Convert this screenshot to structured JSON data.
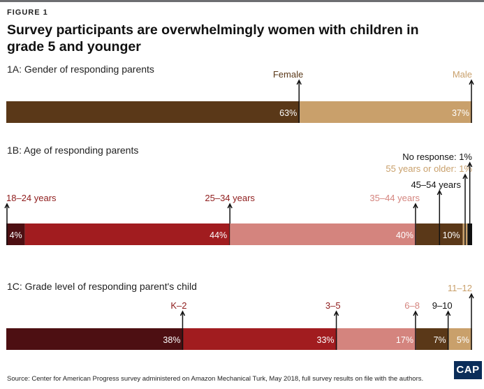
{
  "figure_label": "FIGURE 1",
  "title": "Survey participants are overwhelmingly women with children in grade 5 and younger",
  "source": "Source: Center for American Progress survey administered on Amazon Mechanical Turk, May 2018, full survey results on file with the authors.",
  "logo": "CAP",
  "colors": {
    "dark_brown": "#5a3818",
    "tan": "#c9a06b",
    "black": "#111111",
    "dark_maroon": "#4d0f12",
    "red": "#a11c1f",
    "pink": "#d4847e",
    "dark_red_text": "#8e1b1b"
  },
  "chart_data": [
    {
      "type": "bar",
      "orientation": "horizontal-stacked",
      "title": "1A: Gender of responding parents",
      "segments": [
        {
          "label": "Female",
          "value": 63,
          "value_label": "63%",
          "color": "#5a3818",
          "label_color": "#5a3818"
        },
        {
          "label": "Male",
          "value": 37,
          "value_label": "37%",
          "color": "#c9a06b",
          "label_color": "#c9a06b"
        }
      ]
    },
    {
      "type": "bar",
      "orientation": "horizontal-stacked",
      "title": "1B: Age of responding parents",
      "segments": [
        {
          "label": "18–24 years",
          "value": 4,
          "value_label": "4%",
          "color": "#4d0f12",
          "label_color": "#8e1b1b"
        },
        {
          "label": "25–34 years",
          "value": 44,
          "value_label": "44%",
          "color": "#a11c1f",
          "label_color": "#8e1b1b"
        },
        {
          "label": "35–44 years",
          "value": 40,
          "value_label": "40%",
          "color": "#d4847e",
          "label_color": "#d4847e"
        },
        {
          "label": "45–54 years",
          "value": 10,
          "value_label": "10%",
          "color": "#5a3818",
          "label_color": "#111111"
        },
        {
          "label": "55 years or older: 1%",
          "value": 1,
          "value_label": "",
          "color": "#c9a06b",
          "label_color": "#c9a06b"
        },
        {
          "label": "No response: 1%",
          "value": 1,
          "value_label": "",
          "color": "#111111",
          "label_color": "#111111"
        }
      ]
    },
    {
      "type": "bar",
      "orientation": "horizontal-stacked",
      "title": "1C: Grade level of responding parent's child",
      "segments": [
        {
          "label": "K–2",
          "value": 38,
          "value_label": "38%",
          "color": "#4d0f12",
          "label_color": "#8e1b1b"
        },
        {
          "label": "3–5",
          "value": 33,
          "value_label": "33%",
          "color": "#a11c1f",
          "label_color": "#8e1b1b"
        },
        {
          "label": "6–8",
          "value": 17,
          "value_label": "17%",
          "color": "#d4847e",
          "label_color": "#d4847e"
        },
        {
          "label": "9–10",
          "value": 7,
          "value_label": "7%",
          "color": "#5a3818",
          "label_color": "#111111"
        },
        {
          "label": "11–12",
          "value": 5,
          "value_label": "5%",
          "color": "#c9a06b",
          "label_color": "#c9a06b"
        }
      ]
    }
  ]
}
